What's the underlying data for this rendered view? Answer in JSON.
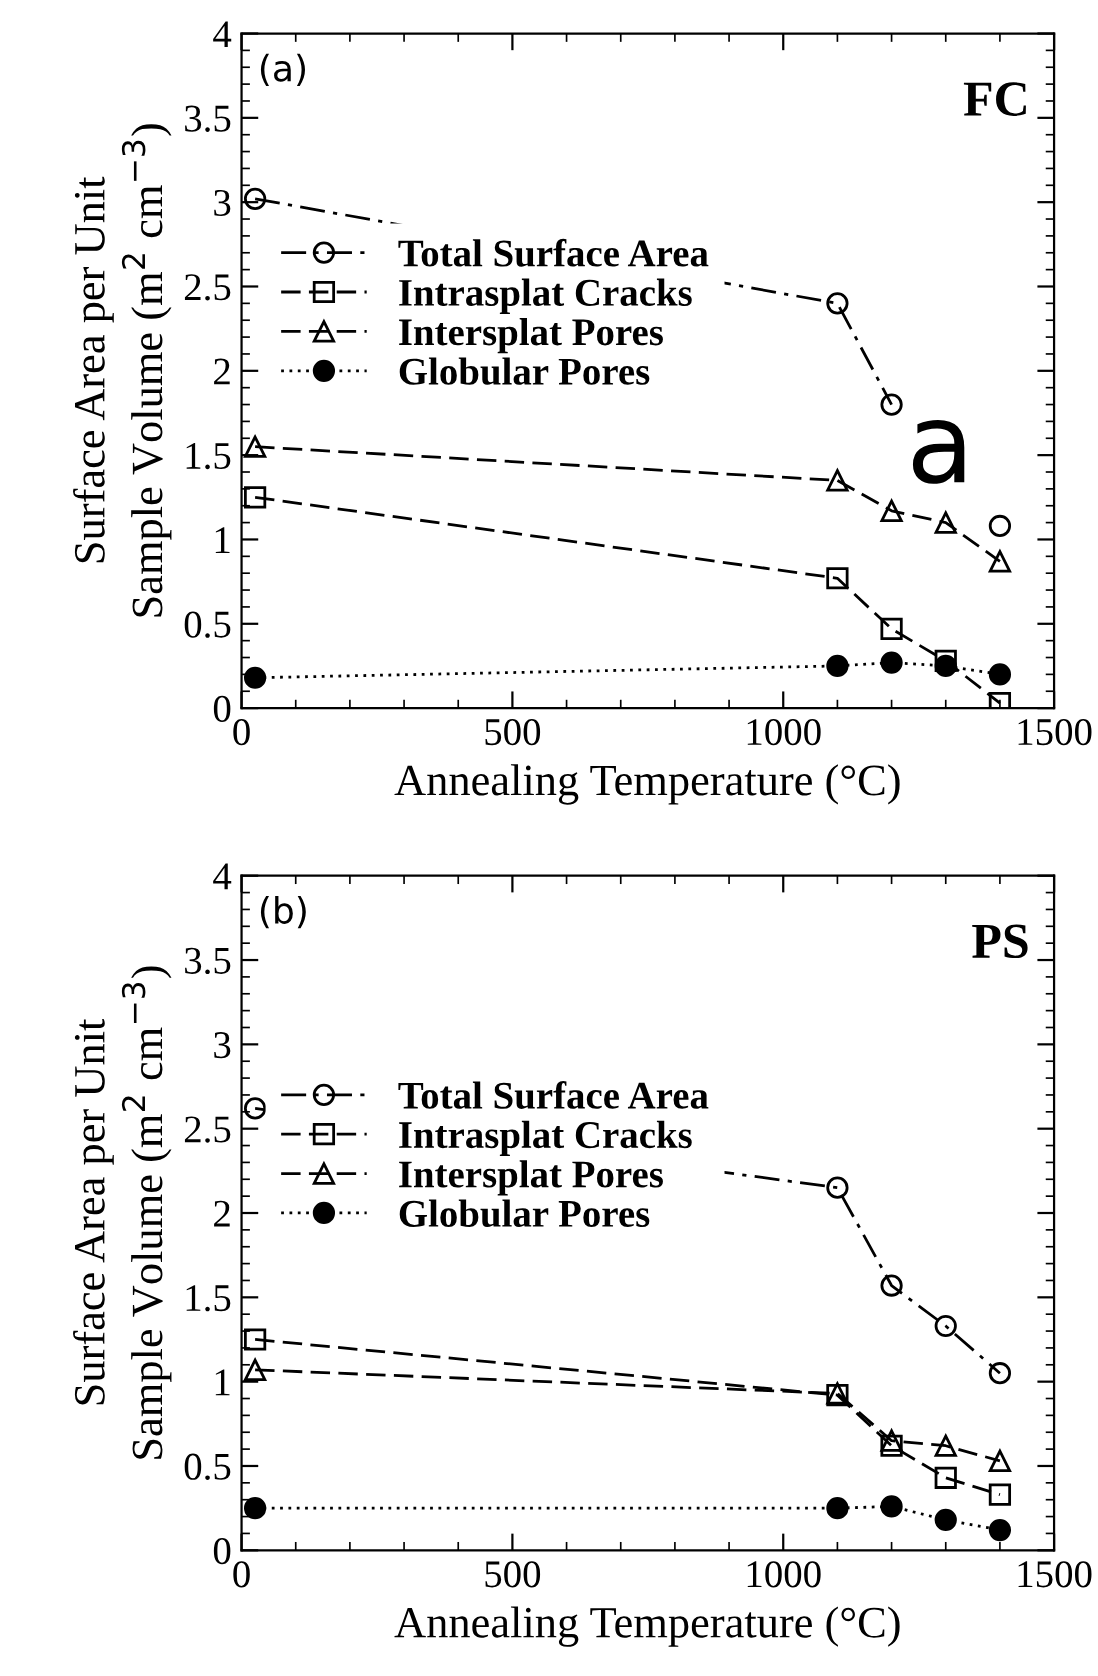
{
  "chart_data": [
    {
      "type": "line",
      "xlabel": "Annealing Temperature (°C)",
      "ylabel": "Surface Area per Unit\nSample Volume (m$^{2}$ cm$^{−3}$)",
      "annotations": [
        "(a)",
        "FC",
        "a"
      ],
      "x": [
        25,
        1100,
        1200,
        1300,
        1400
      ],
      "xlim": [
        0,
        1500
      ],
      "xticks": [
        0,
        500,
        1000,
        1500
      ],
      "ylim": [
        0,
        4
      ],
      "yticks": [
        0,
        0.5,
        1,
        1.5,
        2,
        2.5,
        3,
        3.5,
        4
      ],
      "grid": false,
      "legend": "left",
      "series": [
        {
          "name": "Total Surface Area",
          "color": "#000000",
          "marker": "circle",
          "line_style": "dashdot",
          "values": [
            3.02,
            2.4,
            1.8,
            null,
            1.08
          ]
        },
        {
          "name": "Intrasplat Cracks",
          "color": "#000000",
          "marker": "square",
          "line_style": "dashed",
          "values": [
            1.25,
            0.77,
            0.47,
            0.28,
            0.03
          ]
        },
        {
          "name": "Intersplat Pores",
          "color": "#000000",
          "marker": "triangle",
          "line_style": "dashed",
          "values": [
            1.55,
            1.35,
            1.17,
            1.1,
            0.87
          ]
        },
        {
          "name": "Globular Pores",
          "color": "#000000",
          "marker": "filled circle",
          "line_style": "dotted",
          "values": [
            0.18,
            0.25,
            0.27,
            0.25,
            0.2
          ]
        }
      ]
    },
    {
      "type": "line",
      "xlabel": "Annealing Temperature (°C)",
      "ylabel": "Surface Area per Unit\nSample Volume (m$^{2}$ cm$^{−3}$)",
      "annotations": [
        "(b)",
        "PS"
      ],
      "x": [
        25,
        1100,
        1200,
        1300,
        1400
      ],
      "xlim": [
        0,
        1500
      ],
      "xticks": [
        0,
        500,
        1000,
        1500
      ],
      "ylim": [
        0,
        4
      ],
      "yticks": [
        0,
        0.5,
        1,
        1.5,
        2,
        2.5,
        3,
        3.5,
        4
      ],
      "grid": false,
      "legend": "left",
      "series": [
        {
          "name": "Total Surface Area",
          "color": "#000000",
          "marker": "circle",
          "line_style": "dashdot",
          "values": [
            2.62,
            2.15,
            1.57,
            1.33,
            1.05
          ]
        },
        {
          "name": "Intrasplat Cracks",
          "color": "#000000",
          "marker": "square",
          "line_style": "dashed",
          "values": [
            1.25,
            0.92,
            0.62,
            0.43,
            0.33
          ]
        },
        {
          "name": "Intersplat Pores",
          "color": "#000000",
          "marker": "triangle",
          "line_style": "dashed",
          "values": [
            1.07,
            0.93,
            0.65,
            0.62,
            0.53
          ]
        },
        {
          "name": "Globular Pores",
          "color": "#000000",
          "marker": "filled circle",
          "line_style": "dotted",
          "values": [
            0.25,
            0.25,
            0.26,
            0.18,
            0.12
          ]
        }
      ]
    }
  ]
}
